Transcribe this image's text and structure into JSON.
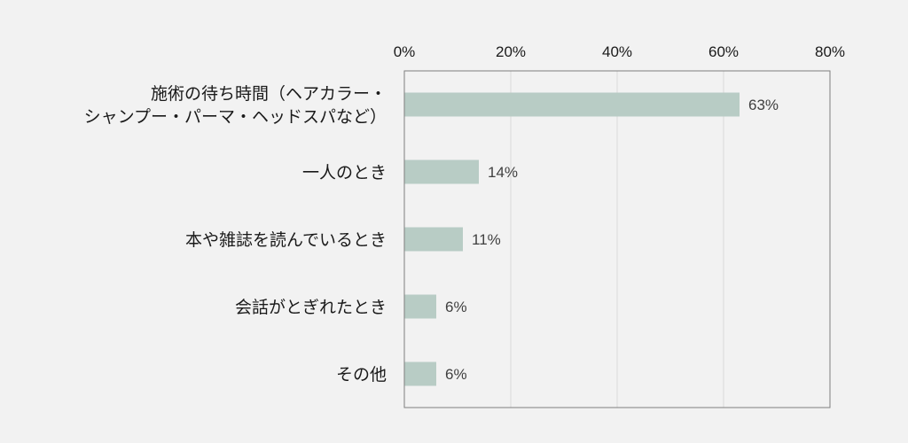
{
  "chart_data": {
    "type": "bar",
    "orientation": "horizontal",
    "categories": [
      [
        "施術の待ち時間（ヘアカラー・",
        "シャンプー・パーマ・ヘッドスパなど）"
      ],
      [
        "一人のとき"
      ],
      [
        "本や雑誌を読んでいるとき"
      ],
      [
        "会話がとぎれたとき"
      ],
      [
        "その他"
      ]
    ],
    "values": [
      63,
      14,
      11,
      6,
      6
    ],
    "value_labels": [
      "63%",
      "14%",
      "11%",
      "6%",
      "6%"
    ],
    "xlim": [
      0,
      80
    ],
    "xticks": [
      0,
      20,
      40,
      60,
      80
    ],
    "xtick_labels": [
      "0%",
      "20%",
      "40%",
      "60%",
      "80%"
    ],
    "axis_position": "top",
    "grid": true,
    "legend": "none",
    "colors": {
      "bar": "#b8ccc5",
      "grid": "#d9d9d9",
      "frame": "#7f7f7f",
      "text": "#1a1a1a",
      "label": "#404040",
      "background": "#f2f2f2"
    }
  }
}
